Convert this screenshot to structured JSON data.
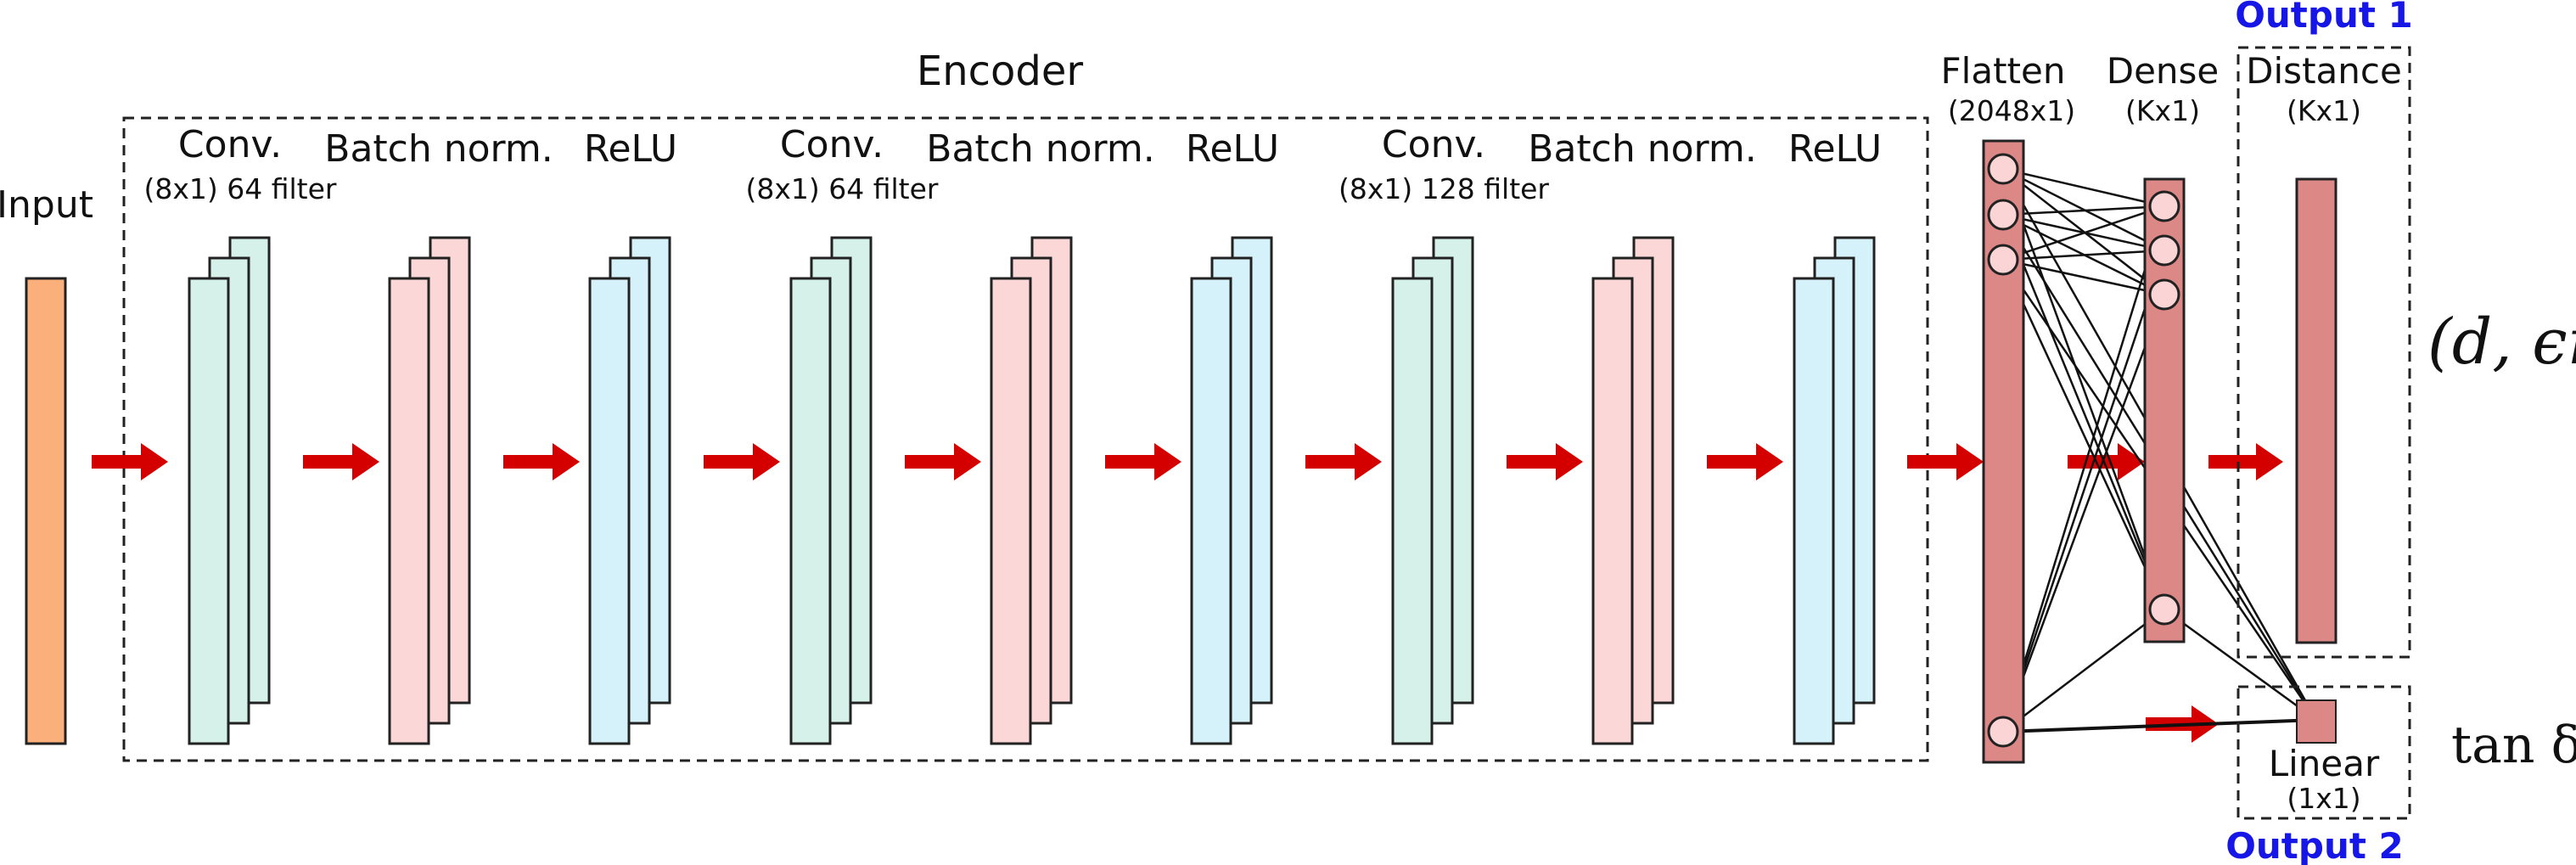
{
  "labels": {
    "input": "Input",
    "encoder": "Encoder",
    "blocks": [
      {
        "title": "Conv.",
        "sub": "(8x1) 64 filter"
      },
      {
        "title": "Batch norm.",
        "sub": ""
      },
      {
        "title": "ReLU",
        "sub": ""
      },
      {
        "title": "Conv.",
        "sub": "(8x1) 64 filter"
      },
      {
        "title": "Batch norm.",
        "sub": ""
      },
      {
        "title": "ReLU",
        "sub": ""
      },
      {
        "title": "Conv.",
        "sub": "(8x1) 128 filter"
      },
      {
        "title": "Batch norm.",
        "sub": ""
      },
      {
        "title": "ReLU",
        "sub": ""
      }
    ],
    "flatten": {
      "title": "Flatten",
      "sub": "(2048x1)"
    },
    "dense": {
      "title": "Dense",
      "sub": "(Kx1)"
    },
    "distance": {
      "title": "Distance",
      "sub": "(Kx1)"
    },
    "linear": {
      "title": "Linear",
      "sub": "(1x1)"
    },
    "output1": "Output 1",
    "output2": "Output 2",
    "math_output1": "(d, ϵr)",
    "math_output2": "tan δ"
  },
  "colors": {
    "input": "#fbb07c",
    "conv": "#d6f1ea",
    "batchnorm": "#fbd7d7",
    "relu": "#d5f2fa",
    "dense_layer": "#db8887",
    "neuron": "#fbd5d5",
    "arrow": "#d40000",
    "output_label": "#1616e6"
  }
}
